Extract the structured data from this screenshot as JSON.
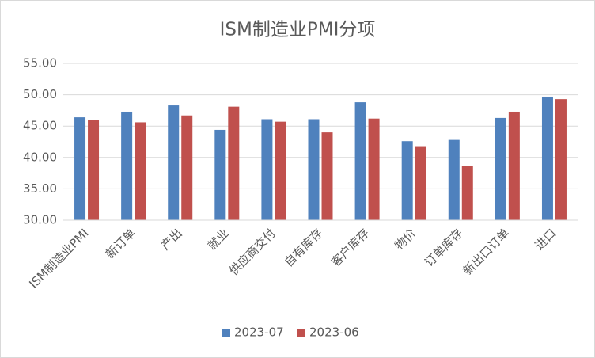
{
  "chart_data": {
    "type": "bar",
    "title": "ISM制造业PMI分项",
    "categories": [
      "ISM制造业PMI",
      "新订单",
      "产出",
      "就业",
      "供应商交付",
      "自有库存",
      "客户库存",
      "物价",
      "订单库存",
      "新出口订单",
      "进口"
    ],
    "series": [
      {
        "name": "2023-07",
        "color": "#4f81bd",
        "values": [
          46.4,
          47.3,
          48.3,
          44.4,
          46.1,
          46.1,
          48.8,
          42.6,
          42.8,
          46.3,
          49.7
        ]
      },
      {
        "name": "2023-06",
        "color": "#c0504d",
        "values": [
          46.0,
          45.6,
          46.7,
          48.1,
          45.7,
          44.0,
          46.2,
          41.8,
          38.7,
          47.3,
          49.3
        ]
      }
    ],
    "ylim": [
      30,
      55
    ],
    "yticks": [
      {
        "value": 30,
        "label": "30.00"
      },
      {
        "value": 35,
        "label": "35.00"
      },
      {
        "value": 40,
        "label": "40.00"
      },
      {
        "value": 45,
        "label": "45.00"
      },
      {
        "value": 50,
        "label": "50.00"
      },
      {
        "value": 55,
        "label": "55.00"
      }
    ],
    "grid": true,
    "legend": "bottom"
  }
}
